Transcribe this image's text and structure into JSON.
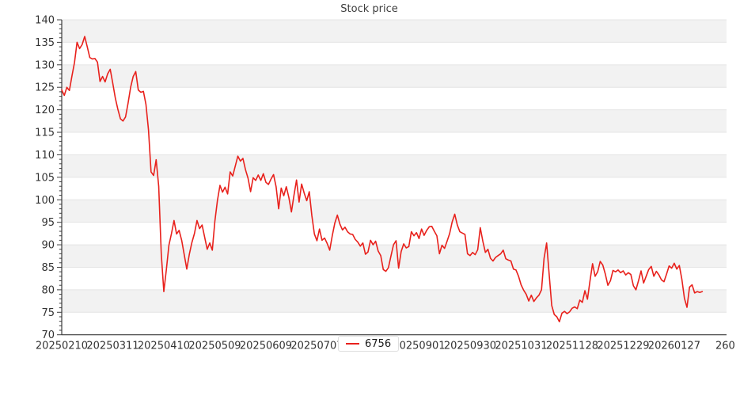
{
  "chart_data": {
    "type": "line",
    "title": "Stock price",
    "xlabel": "",
    "ylabel": "",
    "ylim": [
      70,
      140
    ],
    "ytick_interval": 5,
    "ytick_minor_interval": 1,
    "xlim": [
      0,
      260.5
    ],
    "xtick_interval": 20,
    "xtick_labels": [
      "20250210",
      "20250311",
      "20250410",
      "20250509",
      "20250609",
      "20250707",
      "",
      "20250901",
      "20250930",
      "20251031",
      "20251128",
      "20251229",
      "20260127",
      "260"
    ],
    "legend_slot": 6,
    "grid": "horizontal-bands",
    "legend_position": "below-axis-center",
    "colors": {
      "line": "#e8211c",
      "band": "#f2f2f2",
      "gridline": "#e4e4e4",
      "spine": "#3c3c3c",
      "tick_label": "#333333",
      "title": "#3d3d3d"
    },
    "series": [
      {
        "name": "6756",
        "color": "#e8211c",
        "values": [
          124.4,
          123.2,
          125.0,
          124.3,
          127.5,
          130.5,
          135.0,
          133.6,
          134.5,
          136.3,
          134.0,
          131.6,
          131.3,
          131.4,
          130.6,
          126.3,
          127.4,
          126.2,
          128.0,
          129.0,
          125.9,
          122.6,
          120.1,
          118.0,
          117.5,
          118.4,
          121.5,
          125.0,
          127.4,
          128.5,
          124.4,
          123.9,
          124.1,
          121.2,
          115.5,
          106.2,
          105.4,
          108.9,
          103.0,
          88.0,
          79.6,
          84.5,
          89.9,
          92.5,
          95.4,
          92.4,
          93.2,
          91.0,
          87.8,
          84.6,
          87.9,
          90.5,
          92.5,
          95.4,
          93.6,
          94.4,
          91.7,
          89.0,
          90.4,
          88.8,
          95.2,
          99.8,
          103.2,
          101.7,
          102.8,
          101.3,
          106.2,
          105.3,
          107.5,
          109.7,
          108.6,
          109.2,
          106.7,
          104.8,
          101.8,
          104.9,
          104.3,
          105.5,
          104.3,
          105.8,
          103.9,
          103.4,
          104.6,
          105.6,
          102.9,
          98.0,
          102.6,
          100.9,
          102.9,
          100.5,
          97.3,
          101.0,
          104.4,
          99.5,
          103.5,
          101.5,
          99.8,
          101.8,
          96.5,
          92.4,
          90.9,
          93.5,
          91.0,
          91.5,
          90.3,
          88.8,
          92.0,
          94.8,
          96.6,
          94.6,
          93.3,
          93.9,
          92.9,
          92.4,
          92.3,
          91.2,
          90.6,
          89.7,
          90.4,
          87.9,
          88.4,
          91.0,
          90.0,
          90.8,
          88.6,
          87.6,
          84.5,
          84.1,
          84.9,
          87.5,
          90.0,
          90.9,
          84.8,
          88.5,
          90.2,
          89.3,
          89.6,
          92.9,
          92.0,
          92.7,
          91.4,
          93.5,
          92.1,
          93.2,
          94.0,
          94.1,
          93.0,
          92.0,
          88.0,
          89.9,
          89.2,
          90.8,
          92.5,
          95.1,
          96.8,
          94.4,
          92.9,
          92.6,
          92.3,
          88.0,
          87.6,
          88.3,
          87.8,
          88.9,
          93.8,
          90.8,
          88.3,
          89.0,
          87.0,
          86.4,
          87.2,
          87.6,
          88.0,
          88.8,
          86.9,
          86.6,
          86.4,
          84.6,
          84.4,
          83.0,
          81.1,
          79.9,
          79.0,
          77.5,
          78.8,
          77.4,
          78.2,
          78.8,
          80.0,
          87.0,
          90.4,
          83.4,
          76.5,
          74.5,
          74.0,
          72.9,
          74.8,
          75.2,
          74.7,
          75.1,
          75.9,
          76.2,
          75.8,
          77.7,
          77.2,
          79.8,
          77.9,
          82.0,
          85.8,
          83.0,
          84.0,
          86.3,
          85.5,
          83.5,
          81.0,
          82.0,
          84.3,
          84.0,
          84.4,
          83.8,
          84.2,
          83.3,
          83.8,
          83.4,
          80.9,
          80.0,
          82.0,
          84.2,
          81.5,
          83.0,
          84.5,
          85.2,
          83.0,
          84.1,
          83.3,
          82.2,
          81.8,
          83.5,
          85.3,
          84.8,
          85.9,
          84.6,
          85.4,
          82.3,
          78.1,
          76.1,
          80.6,
          81.1,
          79.3,
          79.6,
          79.4,
          79.6
        ]
      }
    ]
  }
}
